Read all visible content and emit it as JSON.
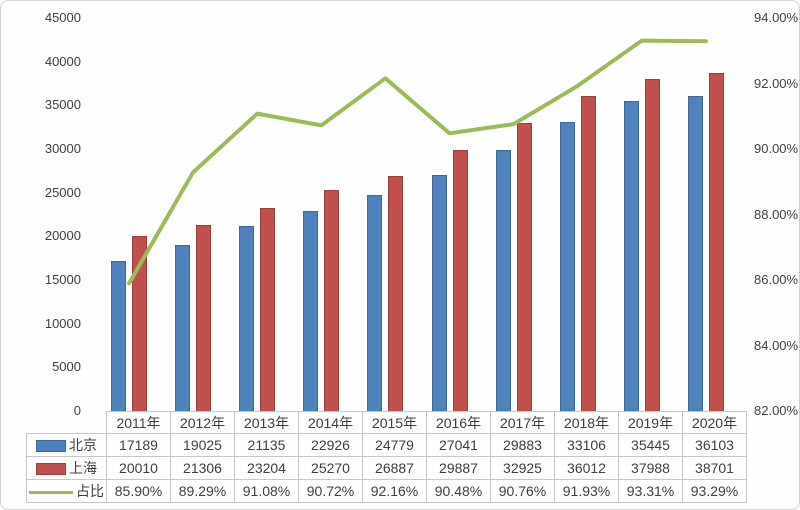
{
  "chart": {
    "left_axis_tick_labels": [
      "45000",
      "40000",
      "35000",
      "30000",
      "25000",
      "20000",
      "15000",
      "10000",
      "5000",
      "0"
    ],
    "right_axis_tick_labels": [
      "94.00%",
      "92.00%",
      "90.00%",
      "88.00%",
      "86.00%",
      "84.00%",
      "82.00%"
    ]
  },
  "chart_data": {
    "type": "bar",
    "subtype": "clustered-bar-with-line",
    "categories": [
      "2011年",
      "2012年",
      "2013年",
      "2014年",
      "2015年",
      "2016年",
      "2017年",
      "2018年",
      "2019年",
      "2020年"
    ],
    "series": [
      {
        "name": "北京",
        "kind": "bar",
        "color": "#4F81BD",
        "axis": "left",
        "values": [
          17189,
          19025,
          21135,
          22926,
          24779,
          27041,
          29883,
          33106,
          35445,
          36103
        ],
        "labels": [
          "17189",
          "19025",
          "21135",
          "22926",
          "24779",
          "27041",
          "29883",
          "33106",
          "35445",
          "36103"
        ]
      },
      {
        "name": "上海",
        "kind": "bar",
        "color": "#C0504D",
        "axis": "left",
        "values": [
          20010,
          21306,
          23204,
          25270,
          26887,
          29887,
          32925,
          36012,
          37988,
          38701
        ],
        "labels": [
          "20010",
          "21306",
          "23204",
          "25270",
          "26887",
          "29887",
          "32925",
          "36012",
          "37988",
          "38701"
        ]
      },
      {
        "name": "占比",
        "kind": "line",
        "color": "#9BBB59",
        "axis": "right",
        "values": [
          85.9,
          89.29,
          91.08,
          90.72,
          92.16,
          90.48,
          90.76,
          91.93,
          93.31,
          93.29
        ],
        "labels": [
          "85.90%",
          "89.29%",
          "91.08%",
          "90.72%",
          "92.16%",
          "90.48%",
          "90.76%",
          "91.93%",
          "93.31%",
          "93.29%"
        ]
      }
    ],
    "left_axis": {
      "min": 0,
      "max": 45000,
      "step": 5000
    },
    "right_axis": {
      "min": 82,
      "max": 94,
      "step": 2,
      "format": "percent"
    },
    "grid": false,
    "legend_position": "data-table-left",
    "title": "",
    "xlabel": "",
    "ylabel": ""
  }
}
